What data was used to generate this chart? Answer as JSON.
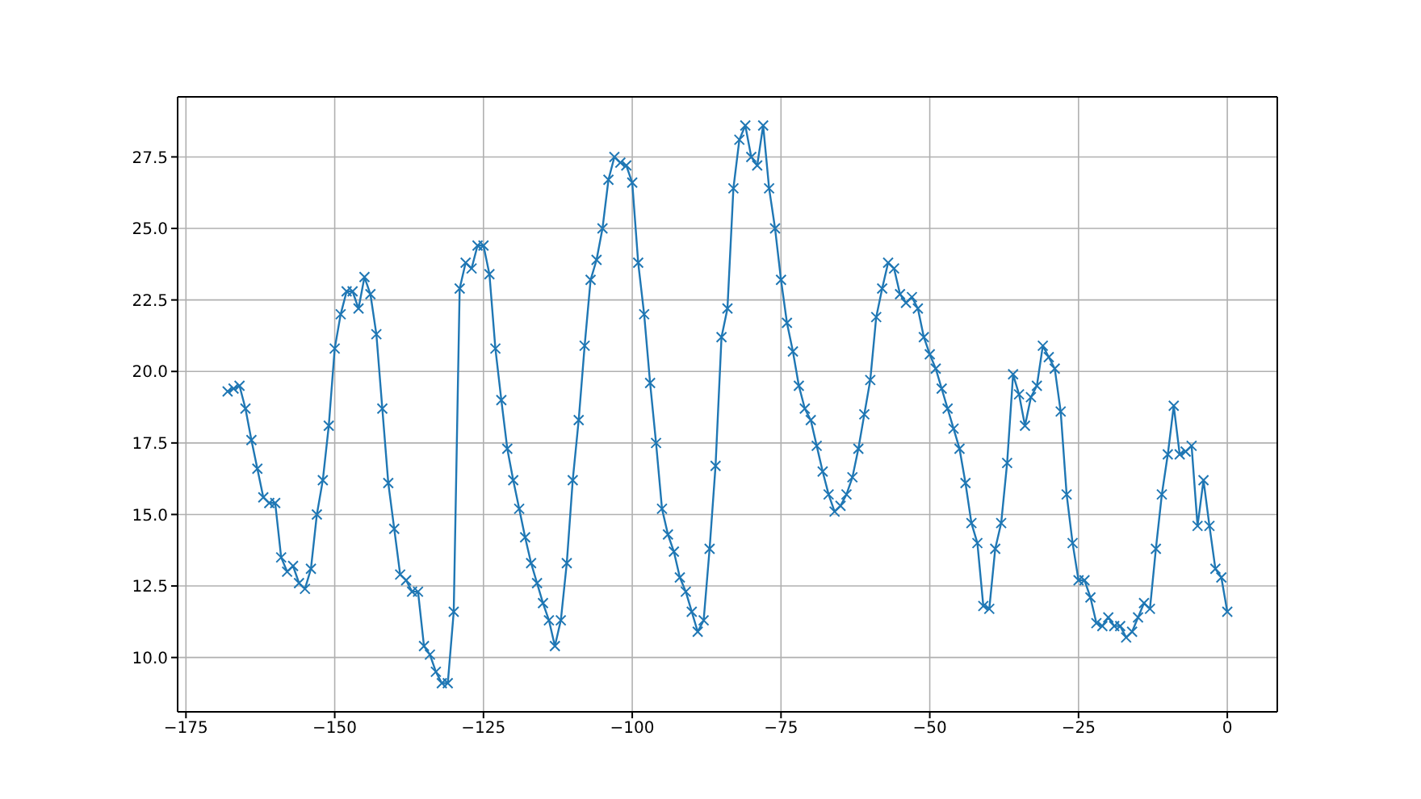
{
  "chart_data": {
    "type": "line",
    "color": "#1f77b4",
    "marker": "cross",
    "grid": true,
    "x": [
      -168,
      -167,
      -166,
      -165,
      -164,
      -163,
      -162,
      -161,
      -160,
      -159,
      -158,
      -157,
      -156,
      -155,
      -154,
      -153,
      -152,
      -151,
      -150,
      -149,
      -148,
      -147,
      -146,
      -145,
      -144,
      -143,
      -142,
      -141,
      -140,
      -139,
      -138,
      -137,
      -136,
      -135,
      -134,
      -133,
      -132,
      -131,
      -130,
      -129,
      -128,
      -127,
      -126,
      -125,
      -124,
      -123,
      -122,
      -121,
      -120,
      -119,
      -118,
      -117,
      -116,
      -115,
      -114,
      -113,
      -112,
      -111,
      -110,
      -109,
      -108,
      -107,
      -106,
      -105,
      -104,
      -103,
      -102,
      -101,
      -100,
      -99,
      -98,
      -97,
      -96,
      -95,
      -94,
      -93,
      -92,
      -91,
      -90,
      -89,
      -88,
      -87,
      -86,
      -85,
      -84,
      -83,
      -82,
      -81,
      -80,
      -79,
      -78,
      -77,
      -76,
      -75,
      -74,
      -73,
      -72,
      -71,
      -70,
      -69,
      -68,
      -67,
      -66,
      -65,
      -64,
      -63,
      -62,
      -61,
      -60,
      -59,
      -58,
      -57,
      -56,
      -55,
      -54,
      -53,
      -52,
      -51,
      -50,
      -49,
      -48,
      -47,
      -46,
      -45,
      -44,
      -43,
      -42,
      -41,
      -40,
      -39,
      -38,
      -37,
      -36,
      -35,
      -34,
      -33,
      -32,
      -31,
      -30,
      -29,
      -28,
      -27,
      -26,
      -25,
      -24,
      -23,
      -22,
      -21,
      -20,
      -19,
      -18,
      -17,
      -16,
      -15,
      -14,
      -13,
      -12,
      -11,
      -10,
      -9,
      -8,
      -7,
      -6,
      -5,
      -4,
      -3,
      -2,
      -1,
      0
    ],
    "values": [
      19.3,
      19.4,
      19.5,
      18.7,
      17.6,
      16.6,
      15.6,
      15.4,
      15.4,
      13.5,
      13.0,
      13.2,
      12.6,
      12.4,
      13.1,
      15.0,
      16.2,
      18.1,
      20.8,
      22.0,
      22.8,
      22.8,
      22.2,
      23.3,
      22.7,
      21.3,
      18.7,
      16.1,
      14.5,
      12.9,
      12.7,
      12.3,
      12.3,
      10.4,
      10.1,
      9.5,
      9.1,
      9.1,
      11.6,
      22.9,
      23.8,
      23.6,
      24.4,
      24.4,
      23.4,
      20.8,
      19.0,
      17.3,
      16.2,
      15.2,
      14.2,
      13.3,
      12.6,
      11.9,
      11.3,
      10.4,
      11.3,
      13.3,
      16.2,
      18.3,
      20.9,
      23.2,
      23.9,
      25.0,
      26.7,
      27.5,
      27.3,
      27.2,
      26.6,
      23.8,
      22.0,
      19.6,
      17.5,
      15.2,
      14.3,
      13.7,
      12.8,
      12.3,
      11.6,
      10.9,
      11.3,
      13.8,
      16.7,
      21.2,
      22.2,
      26.4,
      28.1,
      28.6,
      27.5,
      27.2,
      28.6,
      26.4,
      25.0,
      23.2,
      21.7,
      20.7,
      19.5,
      18.7,
      18.3,
      17.4,
      16.5,
      15.7,
      15.1,
      15.3,
      15.7,
      16.3,
      17.3,
      18.5,
      19.7,
      21.9,
      22.9,
      23.8,
      23.6,
      22.7,
      22.4,
      22.6,
      22.2,
      21.2,
      20.6,
      20.1,
      19.4,
      18.7,
      18.0,
      17.3,
      16.1,
      14.7,
      14.0,
      11.8,
      11.7,
      13.8,
      14.7,
      16.8,
      19.9,
      19.2,
      18.1,
      19.1,
      19.5,
      20.9,
      20.5,
      20.1,
      18.6,
      15.7,
      14.0,
      12.7,
      12.7,
      12.1,
      11.2,
      11.1,
      11.4,
      11.1,
      11.1,
      10.7,
      10.9,
      11.4,
      11.9,
      11.7,
      13.8,
      15.7,
      17.1,
      18.8,
      17.1,
      17.2,
      17.4,
      14.6,
      16.2,
      14.6,
      13.1,
      12.8,
      11.6
    ],
    "xlim": [
      -176.4,
      8.4
    ],
    "ylim": [
      8.1,
      29.6
    ],
    "xticks": [
      {
        "value": -175,
        "label": "−175"
      },
      {
        "value": -150,
        "label": "−150"
      },
      {
        "value": -125,
        "label": "−125"
      },
      {
        "value": -100,
        "label": "−100"
      },
      {
        "value": -75,
        "label": "−75"
      },
      {
        "value": -50,
        "label": "−50"
      },
      {
        "value": -25,
        "label": "−25"
      },
      0
    ],
    "yticks": [
      {
        "value": 10,
        "label": "10.0"
      },
      {
        "value": 12.5,
        "label": "12.5"
      },
      {
        "value": 15,
        "label": "15.0"
      },
      {
        "value": 17.5,
        "label": "17.5"
      },
      {
        "value": 20,
        "label": "20.0"
      },
      {
        "value": 22.5,
        "label": "22.5"
      },
      {
        "value": 25,
        "label": "25.0"
      },
      {
        "value": 27.5,
        "label": "27.5"
      }
    ]
  }
}
